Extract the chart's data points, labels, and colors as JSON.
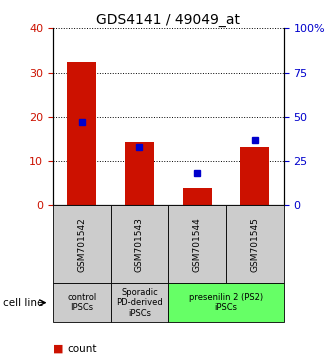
{
  "title": "GDS4141 / 49049_at",
  "samples": [
    "GSM701542",
    "GSM701543",
    "GSM701544",
    "GSM701545"
  ],
  "counts": [
    32.5,
    14.2,
    4.0,
    13.2
  ],
  "percentiles": [
    47.0,
    33.0,
    18.0,
    37.0
  ],
  "left_ylim": [
    0,
    40
  ],
  "right_ylim": [
    0,
    100
  ],
  "left_yticks": [
    0,
    10,
    20,
    30,
    40
  ],
  "right_yticks": [
    0,
    25,
    50,
    75,
    100
  ],
  "right_yticklabels": [
    "0",
    "25",
    "50",
    "75",
    "100%"
  ],
  "bar_color": "#cc1100",
  "marker_color": "#0000cc",
  "groups": [
    {
      "label": "control\nIPSCs",
      "start": 0,
      "end": 1,
      "color": "#cccccc"
    },
    {
      "label": "Sporadic\nPD-derived\niPSCs",
      "start": 1,
      "end": 2,
      "color": "#cccccc"
    },
    {
      "label": "presenilin 2 (PS2)\niPSCs",
      "start": 2,
      "end": 4,
      "color": "#66ff66"
    }
  ],
  "cell_line_label": "cell line",
  "background_color": "#ffffff",
  "sample_box_color": "#cccccc",
  "bar_width": 0.5
}
